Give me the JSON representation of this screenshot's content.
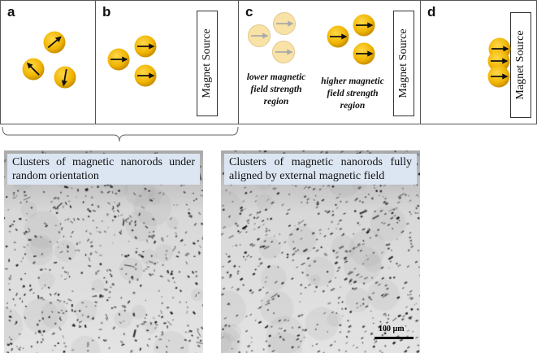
{
  "panels": {
    "a": {
      "label": "a"
    },
    "b": {
      "label": "b",
      "magnet": "Magnet Source"
    },
    "c": {
      "label": "c",
      "magnet": "Magnet Source",
      "low_region": "lower magnetic field strength region",
      "high_region": "higher magnetic field strength region"
    },
    "d": {
      "label": "d",
      "magnet": "Magnet Source"
    }
  },
  "micrographs": {
    "left": {
      "caption": "Clusters of magnetic nanorods under random orientation"
    },
    "right": {
      "caption": "Clusters of magnetic nanorods fully aligned by external magnetic field",
      "scale_bar": "100 µm"
    }
  },
  "colors": {
    "particle": "#f0b400",
    "particle_faded": "#f8e2a6",
    "caption_bg": "#dce6f2"
  }
}
